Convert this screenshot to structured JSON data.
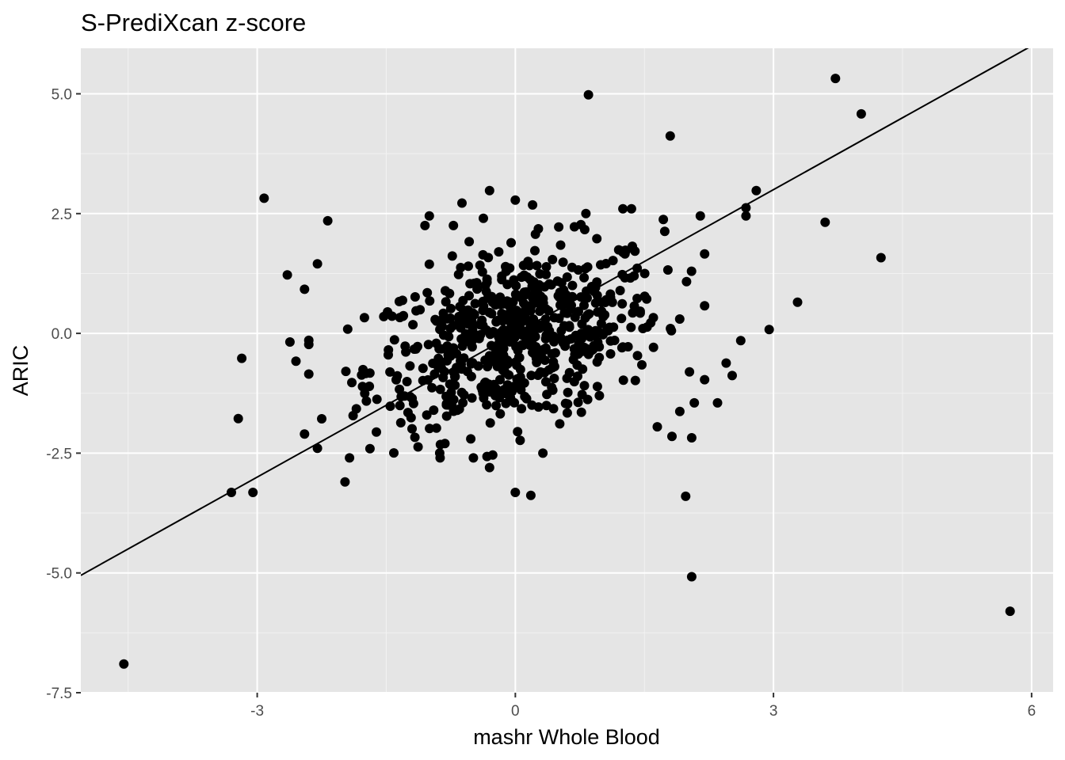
{
  "chart_data": {
    "type": "scatter",
    "title": "S-PrediXcan z-score",
    "xlabel": "mashr Whole Blood",
    "ylabel": "ARIC",
    "xlim": [
      -5.05,
      6.25
    ],
    "ylim": [
      -7.5,
      5.95
    ],
    "x_ticks": [
      -3,
      0,
      3,
      6
    ],
    "x_tick_labels": [
      "-3",
      "0",
      "3",
      "6"
    ],
    "y_ticks": [
      -7.5,
      -5.0,
      -2.5,
      0.0,
      2.5,
      5.0
    ],
    "y_tick_labels": [
      "-7.5",
      "-5.0",
      "-2.5",
      "0.0",
      "2.5",
      "5.0"
    ],
    "grid": true,
    "background_color": "#e5e5e5",
    "point_color": "#000000",
    "reference_line": {
      "slope": 1,
      "intercept": 0
    },
    "highlighted_points": [
      {
        "x": -4.55,
        "y": -6.9
      },
      {
        "x": -3.3,
        "y": -3.32
      },
      {
        "x": -3.05,
        "y": -3.32
      },
      {
        "x": -3.22,
        "y": -1.78
      },
      {
        "x": -3.18,
        "y": -0.52
      },
      {
        "x": -2.92,
        "y": 2.82
      },
      {
        "x": -2.65,
        "y": 1.22
      },
      {
        "x": -2.3,
        "y": 1.45
      },
      {
        "x": -2.18,
        "y": 2.35
      },
      {
        "x": -1.98,
        "y": -3.1
      },
      {
        "x": 0.85,
        "y": 4.98
      },
      {
        "x": 1.8,
        "y": 4.12
      },
      {
        "x": 2.05,
        "y": -5.08
      },
      {
        "x": 1.98,
        "y": -3.4
      },
      {
        "x": 2.8,
        "y": 2.98
      },
      {
        "x": 2.95,
        "y": 0.08
      },
      {
        "x": 3.28,
        "y": 0.65
      },
      {
        "x": 3.6,
        "y": 2.32
      },
      {
        "x": 3.72,
        "y": 5.32
      },
      {
        "x": 4.02,
        "y": 4.58
      },
      {
        "x": 4.25,
        "y": 1.58
      },
      {
        "x": 5.75,
        "y": -5.8
      },
      {
        "x": -0.3,
        "y": 2.98
      },
      {
        "x": 0.0,
        "y": 2.78
      },
      {
        "x": 0.2,
        "y": 2.68
      },
      {
        "x": 0.0,
        "y": -3.32
      },
      {
        "x": 0.18,
        "y": -3.38
      },
      {
        "x": -0.3,
        "y": -2.8
      },
      {
        "x": 0.32,
        "y": -2.5
      },
      {
        "x": -2.45,
        "y": -2.1
      },
      {
        "x": -2.3,
        "y": -2.4
      },
      {
        "x": -2.45,
        "y": 0.92
      },
      {
        "x": -2.55,
        "y": -0.58
      },
      {
        "x": -2.62,
        "y": -0.18
      },
      {
        "x": 2.35,
        "y": -1.45
      },
      {
        "x": 2.45,
        "y": -0.62
      },
      {
        "x": 2.52,
        "y": -0.88
      },
      {
        "x": 2.62,
        "y": -0.15
      },
      {
        "x": 2.68,
        "y": 2.45
      },
      {
        "x": 2.68,
        "y": 2.62
      },
      {
        "x": 2.05,
        "y": -2.18
      },
      {
        "x": 2.08,
        "y": -1.45
      },
      {
        "x": 1.82,
        "y": -2.15
      },
      {
        "x": 1.65,
        "y": -1.95
      },
      {
        "x": 2.15,
        "y": 2.45
      },
      {
        "x": 1.35,
        "y": 2.6
      },
      {
        "x": 1.25,
        "y": 2.6
      },
      {
        "x": 0.82,
        "y": 2.5
      },
      {
        "x": -0.62,
        "y": 2.72
      },
      {
        "x": -1.0,
        "y": 2.45
      },
      {
        "x": -1.05,
        "y": 2.25
      },
      {
        "x": -0.72,
        "y": 2.25
      }
    ],
    "cloud": {
      "approximate_count": 650,
      "x_center": 0.0,
      "y_center": -0.1,
      "x_sd": 0.85,
      "y_sd": 0.95,
      "correlation": 0.35
    }
  }
}
